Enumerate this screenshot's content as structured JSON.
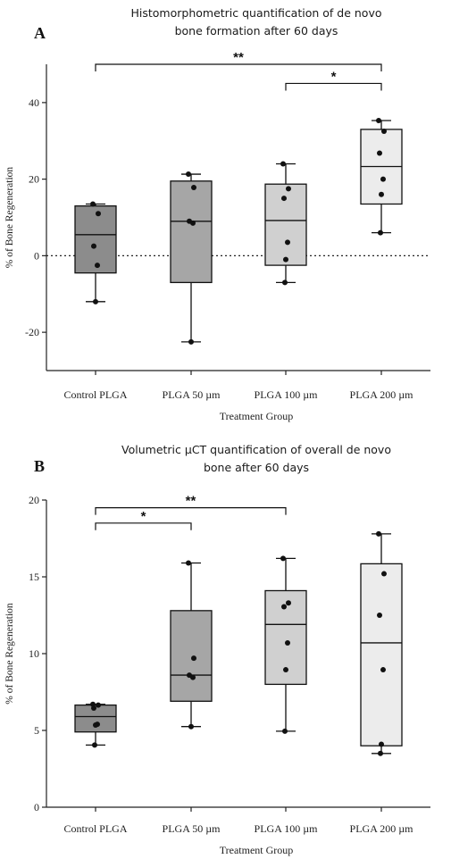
{
  "chart_data": [
    {
      "type": "box",
      "panel_label": "A",
      "title_lines": [
        "Histomorphometric quantification of de novo",
        "bone formation after 60 days"
      ],
      "xlabel": "Treatment Group",
      "ylabel": "% of  Bone Regeneration",
      "ylim": [
        -30,
        50
      ],
      "yticks": [
        -20,
        0,
        20,
        40
      ],
      "categories": [
        "Control PLGA",
        "PLGA 50 µm",
        "PLGA 100 µm",
        "PLGA 200 µm"
      ],
      "colors": [
        "#8c8c8c",
        "#a6a6a6",
        "#d0d0d0",
        "#ececec"
      ],
      "boxes": [
        {
          "min": -12,
          "q1": -4.5,
          "median": 5.5,
          "q3": 13,
          "max": 13.5
        },
        {
          "min": -22.5,
          "q1": -7,
          "median": 9,
          "q3": 19.5,
          "max": 21.3
        },
        {
          "min": -7,
          "q1": -2.5,
          "median": 9.2,
          "q3": 18.7,
          "max": 24
        },
        {
          "min": 6,
          "q1": 13.5,
          "median": 23.3,
          "q3": 33,
          "max": 35.3
        }
      ],
      "points": [
        [
          13.5,
          11,
          2.5,
          -2.5,
          -12
        ],
        [
          21.3,
          17.8,
          9,
          8.5,
          -22.5
        ],
        [
          24,
          17.5,
          15,
          3.5,
          -1,
          -7
        ],
        [
          35.3,
          32.5,
          26.8,
          20,
          16,
          6
        ]
      ],
      "zero_line": true,
      "significance": [
        {
          "from": 0,
          "to": 3,
          "label": "**",
          "y": 50
        },
        {
          "from": 2,
          "to": 3,
          "label": "*",
          "y": 45
        }
      ]
    },
    {
      "type": "box",
      "panel_label": "B",
      "title_lines": [
        "Volumetric µCT quantification of overall de novo",
        "bone after 60 days"
      ],
      "xlabel": "Treatment Group",
      "ylabel": "% of  Bone Regeneration",
      "ylim": [
        0,
        20
      ],
      "yticks": [
        0,
        5,
        10,
        15,
        20
      ],
      "categories": [
        "Control PLGA",
        "PLGA 50 µm",
        "PLGA 100 µm",
        "PLGA 200 µm"
      ],
      "colors": [
        "#8c8c8c",
        "#a6a6a6",
        "#d0d0d0",
        "#ececec"
      ],
      "boxes": [
        {
          "min": 4.05,
          "q1": 4.9,
          "median": 5.9,
          "q3": 6.65,
          "max": 6.7
        },
        {
          "min": 5.25,
          "q1": 6.9,
          "median": 8.6,
          "q3": 12.8,
          "max": 15.9
        },
        {
          "min": 4.95,
          "q1": 8,
          "median": 11.9,
          "q3": 14.1,
          "max": 16.2
        },
        {
          "min": 3.5,
          "q1": 4,
          "median": 10.7,
          "q3": 15.85,
          "max": 17.8
        }
      ],
      "points": [
        [
          6.7,
          6.65,
          6.45,
          5.4,
          5.35,
          4.05
        ],
        [
          15.9,
          9.7,
          8.6,
          8.45,
          5.25
        ],
        [
          16.2,
          13.3,
          13.05,
          10.7,
          8.95,
          4.95
        ],
        [
          17.8,
          15.2,
          12.5,
          8.95,
          4.1,
          3.5
        ]
      ],
      "zero_line": false,
      "significance": [
        {
          "from": 0,
          "to": 1,
          "label": "*",
          "y": 18.5
        },
        {
          "from": 0,
          "to": 2,
          "label": "**",
          "y": 19.5
        }
      ]
    }
  ]
}
